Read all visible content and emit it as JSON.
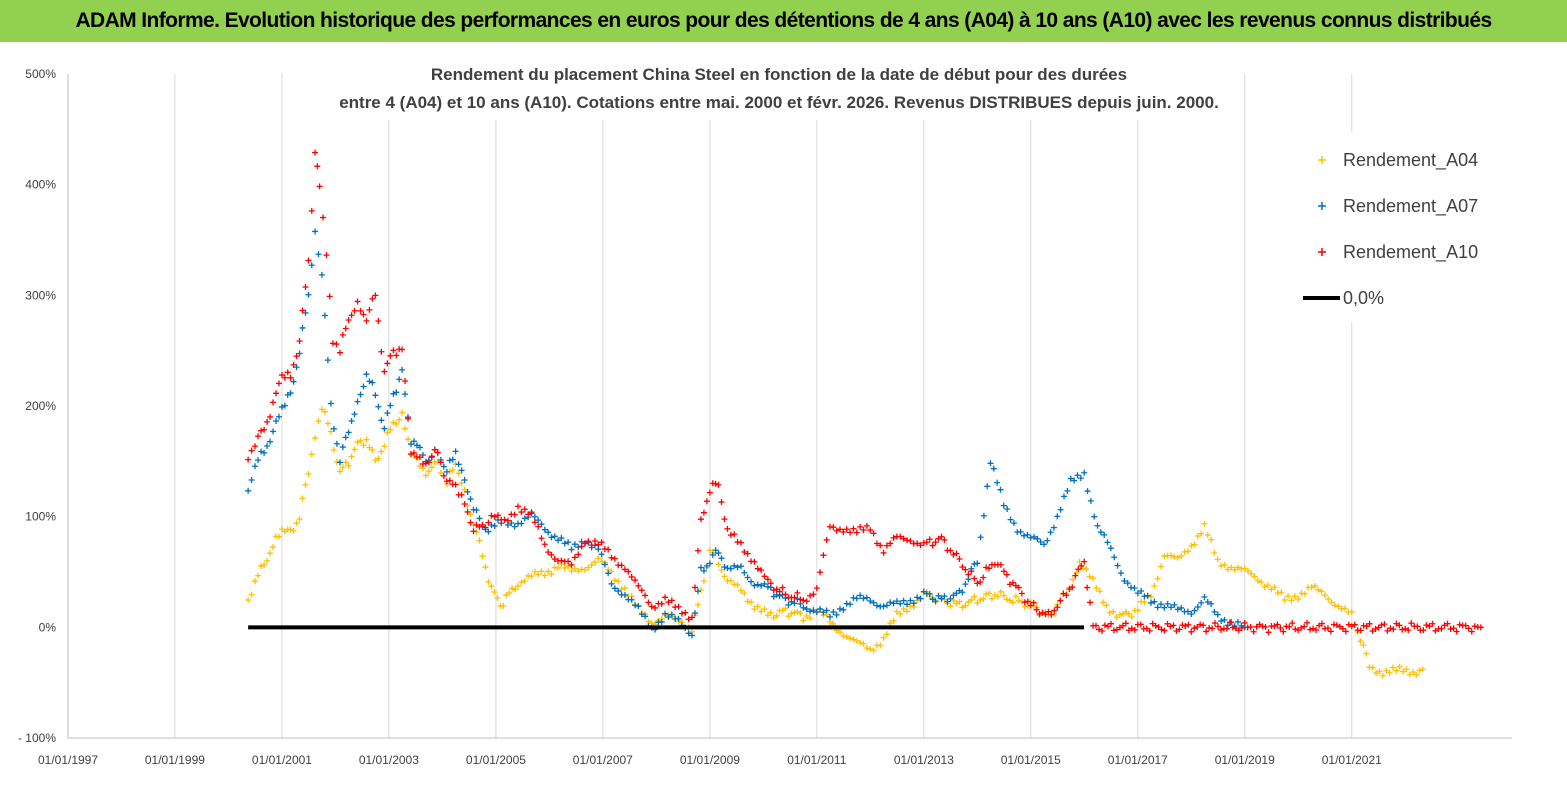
{
  "header": {
    "title": "ADAM Informe. Evolution historique des performances en euros pour des détentions de 4 ans (A04) à 10 ans (A10) avec les revenus connus distribués"
  },
  "chart_data": {
    "type": "scatter",
    "title": "Rendement du placement China Steel  en fonction de la date de début pour des durées",
    "subtitle": "entre 4 (A04) et 10 ans (A10).  Cotations entre mai. 2000 et févr. 2026. Revenus DISTRIBUES depuis juin. 2000.",
    "xlabel": "",
    "ylabel": "",
    "x_range": [
      "1997-01-01",
      "2023-12-31"
    ],
    "x_ticks": [
      "01/01/1997",
      "01/01/1999",
      "01/01/2001",
      "01/01/2003",
      "01/01/2005",
      "01/01/2007",
      "01/01/2009",
      "01/01/2011",
      "01/01/2013",
      "01/01/2015",
      "01/01/2017",
      "01/01/2019",
      "01/01/2021"
    ],
    "ylim": [
      -100,
      500
    ],
    "y_ticks": [
      "- 100%",
      "0%",
      "100%",
      "200%",
      "300%",
      "400%",
      "500%"
    ],
    "y_tick_values": [
      -100,
      0,
      100,
      200,
      300,
      400,
      500
    ],
    "grid": "vertical",
    "legend_position": "top-right",
    "series": [
      {
        "name": "Rendement_A04",
        "color": "#ffc000",
        "points": [
          [
            "2000-05-15",
            25
          ],
          [
            "2000-07-01",
            40
          ],
          [
            "2000-09-01",
            58
          ],
          [
            "2000-11-01",
            72
          ],
          [
            "2001-01-01",
            90
          ],
          [
            "2001-03-01",
            85
          ],
          [
            "2001-05-01",
            100
          ],
          [
            "2001-07-01",
            140
          ],
          [
            "2001-08-15",
            175
          ],
          [
            "2001-10-01",
            200
          ],
          [
            "2001-12-01",
            175
          ],
          [
            "2002-02-01",
            140
          ],
          [
            "2002-04-01",
            150
          ],
          [
            "2002-06-01",
            165
          ],
          [
            "2002-08-01",
            170
          ],
          [
            "2002-10-01",
            150
          ],
          [
            "2002-12-01",
            165
          ],
          [
            "2003-02-01",
            185
          ],
          [
            "2003-04-01",
            190
          ],
          [
            "2003-06-01",
            160
          ],
          [
            "2003-08-01",
            145
          ],
          [
            "2003-10-01",
            140
          ],
          [
            "2003-12-01",
            150
          ],
          [
            "2004-02-01",
            130
          ],
          [
            "2004-04-01",
            150
          ],
          [
            "2004-06-01",
            120
          ],
          [
            "2004-08-01",
            95
          ],
          [
            "2004-10-01",
            65
          ],
          [
            "2004-12-01",
            35
          ],
          [
            "2005-02-01",
            20
          ],
          [
            "2005-04-01",
            30
          ],
          [
            "2005-06-01",
            40
          ],
          [
            "2005-09-01",
            45
          ],
          [
            "2005-12-01",
            50
          ],
          [
            "2006-03-01",
            55
          ],
          [
            "2006-06-01",
            50
          ],
          [
            "2006-09-01",
            55
          ],
          [
            "2006-12-01",
            60
          ],
          [
            "2007-03-01",
            50
          ],
          [
            "2007-06-01",
            35
          ],
          [
            "2007-09-01",
            15
          ],
          [
            "2007-12-01",
            5
          ],
          [
            "2008-03-01",
            10
          ],
          [
            "2008-06-01",
            5
          ],
          [
            "2008-09-01",
            0
          ],
          [
            "2008-11-01",
            30
          ],
          [
            "2009-01-01",
            70
          ],
          [
            "2009-03-01",
            60
          ],
          [
            "2009-05-01",
            40
          ],
          [
            "2009-08-01",
            35
          ],
          [
            "2009-11-01",
            20
          ],
          [
            "2010-02-01",
            10
          ],
          [
            "2010-06-01",
            15
          ],
          [
            "2010-10-01",
            10
          ],
          [
            "2011-01-01",
            15
          ],
          [
            "2011-04-01",
            5
          ],
          [
            "2011-07-01",
            -5
          ],
          [
            "2011-10-01",
            -15
          ],
          [
            "2012-01-01",
            -20
          ],
          [
            "2012-04-01",
            -10
          ],
          [
            "2012-07-01",
            10
          ],
          [
            "2012-10-01",
            20
          ],
          [
            "2013-01-01",
            30
          ],
          [
            "2013-05-01",
            25
          ],
          [
            "2013-09-01",
            20
          ],
          [
            "2014-01-01",
            25
          ],
          [
            "2014-05-01",
            30
          ],
          [
            "2014-09-01",
            25
          ],
          [
            "2015-01-01",
            20
          ],
          [
            "2015-05-01",
            10
          ],
          [
            "2015-09-01",
            30
          ],
          [
            "2015-12-01",
            60
          ],
          [
            "2016-03-01",
            40
          ],
          [
            "2016-06-01",
            20
          ],
          [
            "2016-09-01",
            10
          ],
          [
            "2017-01-01",
            15
          ],
          [
            "2017-04-01",
            30
          ],
          [
            "2017-07-01",
            65
          ],
          [
            "2017-10-01",
            60
          ],
          [
            "2018-01-01",
            75
          ],
          [
            "2018-04-01",
            90
          ],
          [
            "2018-07-01",
            60
          ],
          [
            "2018-10-01",
            55
          ],
          [
            "2019-01-01",
            50
          ],
          [
            "2019-04-01",
            45
          ],
          [
            "2019-07-01",
            35
          ],
          [
            "2019-10-01",
            25
          ],
          [
            "2020-01-01",
            30
          ],
          [
            "2020-04-01",
            35
          ],
          [
            "2020-07-01",
            30
          ],
          [
            "2020-10-01",
            20
          ],
          [
            "2021-01-01",
            10
          ],
          [
            "2021-03-01",
            -10
          ],
          [
            "2021-05-01",
            -35
          ],
          [
            "2021-08-01",
            -40
          ],
          [
            "2021-11-01",
            -40
          ],
          [
            "2022-02-01",
            -40
          ],
          [
            "2022-05-01",
            -38
          ]
        ]
      },
      {
        "name": "Rendement_A07",
        "color": "#0070c0",
        "points": [
          [
            "2000-05-15",
            125
          ],
          [
            "2000-07-01",
            145
          ],
          [
            "2000-09-01",
            160
          ],
          [
            "2000-11-01",
            175
          ],
          [
            "2001-01-01",
            200
          ],
          [
            "2001-03-01",
            210
          ],
          [
            "2001-05-01",
            250
          ],
          [
            "2001-07-01",
            300
          ],
          [
            "2001-08-15",
            360
          ],
          [
            "2001-10-01",
            320
          ],
          [
            "2001-12-01",
            200
          ],
          [
            "2002-02-01",
            150
          ],
          [
            "2002-04-01",
            180
          ],
          [
            "2002-06-01",
            200
          ],
          [
            "2002-08-01",
            230
          ],
          [
            "2002-10-01",
            210
          ],
          [
            "2002-12-01",
            180
          ],
          [
            "2003-02-01",
            210
          ],
          [
            "2003-04-01",
            230
          ],
          [
            "2003-06-01",
            170
          ],
          [
            "2003-08-01",
            160
          ],
          [
            "2003-10-01",
            150
          ],
          [
            "2003-12-01",
            160
          ],
          [
            "2004-02-01",
            140
          ],
          [
            "2004-04-01",
            160
          ],
          [
            "2004-06-01",
            130
          ],
          [
            "2004-08-01",
            110
          ],
          [
            "2004-10-01",
            90
          ],
          [
            "2004-12-01",
            90
          ],
          [
            "2005-03-01",
            95
          ],
          [
            "2005-06-01",
            95
          ],
          [
            "2005-09-01",
            100
          ],
          [
            "2005-12-01",
            90
          ],
          [
            "2006-03-01",
            80
          ],
          [
            "2006-06-01",
            70
          ],
          [
            "2006-09-01",
            80
          ],
          [
            "2006-12-01",
            70
          ],
          [
            "2007-03-01",
            40
          ],
          [
            "2007-06-01",
            30
          ],
          [
            "2007-09-01",
            15
          ],
          [
            "2007-12-01",
            0
          ],
          [
            "2008-03-01",
            10
          ],
          [
            "2008-06-01",
            5
          ],
          [
            "2008-09-01",
            -5
          ],
          [
            "2008-11-01",
            50
          ],
          [
            "2009-01-01",
            60
          ],
          [
            "2009-03-01",
            70
          ],
          [
            "2009-05-01",
            50
          ],
          [
            "2009-08-01",
            55
          ],
          [
            "2009-11-01",
            40
          ],
          [
            "2010-02-01",
            35
          ],
          [
            "2010-06-01",
            25
          ],
          [
            "2010-10-01",
            20
          ],
          [
            "2011-01-01",
            15
          ],
          [
            "2011-04-01",
            10
          ],
          [
            "2011-07-01",
            20
          ],
          [
            "2011-10-01",
            25
          ],
          [
            "2012-01-01",
            25
          ],
          [
            "2012-04-01",
            20
          ],
          [
            "2012-07-01",
            20
          ],
          [
            "2012-10-01",
            25
          ],
          [
            "2013-01-01",
            30
          ],
          [
            "2013-05-01",
            25
          ],
          [
            "2013-09-01",
            30
          ],
          [
            "2014-01-01",
            60
          ],
          [
            "2014-04-01",
            150
          ],
          [
            "2014-07-01",
            110
          ],
          [
            "2014-10-01",
            90
          ],
          [
            "2015-01-01",
            80
          ],
          [
            "2015-04-01",
            75
          ],
          [
            "2015-07-01",
            100
          ],
          [
            "2015-10-01",
            130
          ],
          [
            "2016-01-01",
            140
          ],
          [
            "2016-04-01",
            90
          ],
          [
            "2016-07-01",
            70
          ],
          [
            "2016-10-01",
            45
          ],
          [
            "2017-01-01",
            30
          ],
          [
            "2017-04-01",
            25
          ],
          [
            "2017-07-01",
            20
          ],
          [
            "2017-10-01",
            15
          ],
          [
            "2018-01-01",
            15
          ],
          [
            "2018-04-01",
            25
          ],
          [
            "2018-07-01",
            10
          ],
          [
            "2018-10-01",
            5
          ],
          [
            "2019-01-01",
            0
          ]
        ]
      },
      {
        "name": "Rendement_A10",
        "color": "#ff0000",
        "points": [
          [
            "2000-05-15",
            155
          ],
          [
            "2000-07-01",
            165
          ],
          [
            "2000-09-01",
            180
          ],
          [
            "2000-11-01",
            200
          ],
          [
            "2001-01-01",
            230
          ],
          [
            "2001-03-01",
            225
          ],
          [
            "2001-05-01",
            260
          ],
          [
            "2001-07-01",
            330
          ],
          [
            "2001-08-15",
            430
          ],
          [
            "2001-09-15",
            400
          ],
          [
            "2001-11-01",
            340
          ],
          [
            "2001-12-15",
            260
          ],
          [
            "2002-02-01",
            250
          ],
          [
            "2002-04-01",
            280
          ],
          [
            "2002-06-01",
            290
          ],
          [
            "2002-08-01",
            280
          ],
          [
            "2002-10-01",
            300
          ],
          [
            "2002-12-01",
            230
          ],
          [
            "2003-02-01",
            250
          ],
          [
            "2003-04-01",
            250
          ],
          [
            "2003-06-01",
            160
          ],
          [
            "2003-08-01",
            150
          ],
          [
            "2003-10-01",
            150
          ],
          [
            "2003-12-01",
            160
          ],
          [
            "2004-02-01",
            130
          ],
          [
            "2004-04-01",
            130
          ],
          [
            "2004-06-01",
            110
          ],
          [
            "2004-08-01",
            90
          ],
          [
            "2004-10-01",
            90
          ],
          [
            "2004-12-01",
            100
          ],
          [
            "2005-03-01",
            95
          ],
          [
            "2005-06-01",
            110
          ],
          [
            "2005-09-01",
            100
          ],
          [
            "2005-12-01",
            75
          ],
          [
            "2006-03-01",
            60
          ],
          [
            "2006-06-01",
            55
          ],
          [
            "2006-09-01",
            80
          ],
          [
            "2006-12-01",
            75
          ],
          [
            "2007-03-01",
            65
          ],
          [
            "2007-06-01",
            55
          ],
          [
            "2007-09-01",
            35
          ],
          [
            "2007-12-01",
            20
          ],
          [
            "2008-03-01",
            25
          ],
          [
            "2008-06-01",
            15
          ],
          [
            "2008-09-01",
            10
          ],
          [
            "2008-11-01",
            95
          ],
          [
            "2009-01-01",
            125
          ],
          [
            "2009-03-01",
            130
          ],
          [
            "2009-05-01",
            85
          ],
          [
            "2009-08-01",
            75
          ],
          [
            "2009-11-01",
            60
          ],
          [
            "2010-02-01",
            40
          ],
          [
            "2010-06-01",
            30
          ],
          [
            "2010-10-01",
            25
          ],
          [
            "2011-01-01",
            35
          ],
          [
            "2011-04-01",
            90
          ],
          [
            "2011-07-01",
            90
          ],
          [
            "2011-10-01",
            85
          ],
          [
            "2012-01-01",
            90
          ],
          [
            "2012-04-01",
            70
          ],
          [
            "2012-07-01",
            80
          ],
          [
            "2012-10-01",
            80
          ],
          [
            "2013-01-01",
            75
          ],
          [
            "2013-05-01",
            80
          ],
          [
            "2013-09-01",
            60
          ],
          [
            "2014-01-01",
            40
          ],
          [
            "2014-05-01",
            60
          ],
          [
            "2014-09-01",
            40
          ],
          [
            "2015-01-01",
            20
          ],
          [
            "2015-05-01",
            10
          ],
          [
            "2015-09-01",
            30
          ],
          [
            "2016-01-01",
            60
          ],
          [
            "2016-03-01",
            0
          ],
          [
            "2017-01-01",
            0
          ],
          [
            "2018-01-01",
            0
          ],
          [
            "2019-01-01",
            0
          ],
          [
            "2020-01-01",
            0
          ],
          [
            "2021-01-01",
            0
          ],
          [
            "2022-01-01",
            0
          ],
          [
            "2023-06-01",
            0
          ]
        ]
      },
      {
        "name": "0,0%",
        "color": "#000000",
        "line": [
          [
            "2000-05-15",
            0
          ],
          [
            "2015-12-31",
            0
          ]
        ]
      }
    ]
  }
}
